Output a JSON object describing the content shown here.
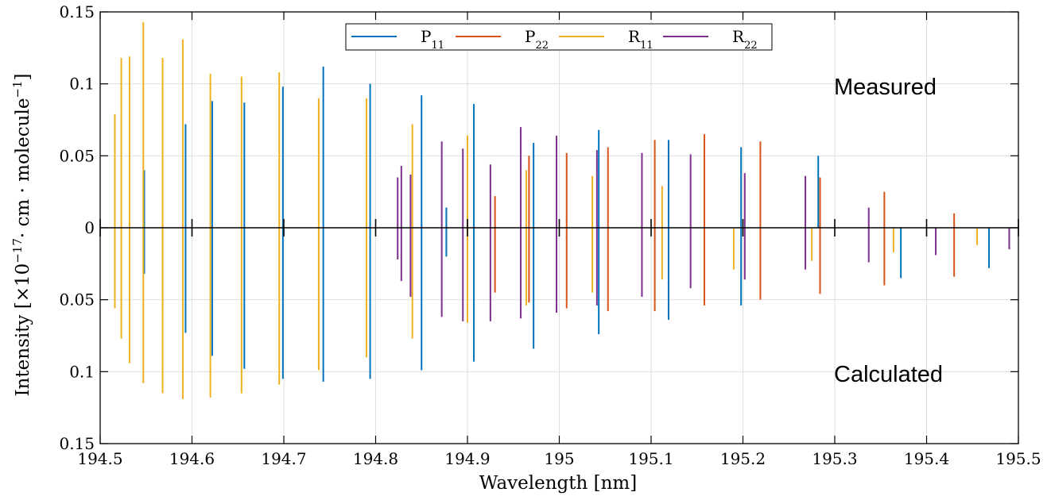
{
  "chart_data": {
    "type": "bar",
    "subtype": "stick-spectrum-mirrored",
    "xlabel": "Wavelength [nm]",
    "ylabel": "Intensity [×10⁻¹⁷· cm · molecule⁻¹]",
    "ylabel_parts": {
      "lead": "Intensity [×10",
      "exp1": "−17",
      "mid": "· cm · molecule",
      "exp2": "−1",
      "tail": "]"
    },
    "xlim": [
      194.5,
      195.5
    ],
    "ylim": [
      -0.15,
      0.15
    ],
    "x_ticks": [
      194.5,
      194.6,
      194.7,
      194.8,
      194.9,
      195.0,
      195.1,
      195.2,
      195.3,
      195.4,
      195.5
    ],
    "x_tick_labels": [
      "194.5",
      "194.6",
      "194.7",
      "194.8",
      "194.9",
      "195",
      "195.1",
      "195.2",
      "195.3",
      "195.4",
      "195.5"
    ],
    "y_ticks": [
      0.15,
      0.1,
      0.05,
      0,
      -0.05,
      -0.1,
      -0.15
    ],
    "y_tick_labels": [
      "0.15",
      "0.1",
      "0.05",
      "0",
      "0.05",
      "0.1",
      "0.15"
    ],
    "grid": true,
    "legend_position": "top-center",
    "annotations": {
      "upper": "Measured",
      "lower": "Calculated"
    },
    "series": [
      {
        "name": "P11",
        "name_main": "P",
        "name_sub": "11",
        "color": "#0072BD",
        "measured": [
          [
            194.548,
            0.04
          ],
          [
            194.593,
            0.072
          ],
          [
            194.622,
            0.088
          ],
          [
            194.657,
            0.087
          ],
          [
            194.699,
            0.098
          ],
          [
            194.743,
            0.112
          ],
          [
            194.794,
            0.1
          ],
          [
            194.85,
            0.092
          ],
          [
            194.877,
            0.014
          ],
          [
            194.907,
            0.086
          ],
          [
            194.972,
            0.059
          ],
          [
            195.043,
            0.068
          ],
          [
            195.119,
            0.061
          ],
          [
            195.198,
            0.056
          ],
          [
            195.282,
            0.05
          ]
        ],
        "calculated": [
          [
            194.548,
            -0.032
          ],
          [
            194.568,
            -0.054
          ],
          [
            194.593,
            -0.073
          ],
          [
            194.622,
            -0.089
          ],
          [
            194.657,
            -0.098
          ],
          [
            194.699,
            -0.105
          ],
          [
            194.743,
            -0.107
          ],
          [
            194.794,
            -0.105
          ],
          [
            194.85,
            -0.099
          ],
          [
            194.877,
            -0.02
          ],
          [
            194.907,
            -0.093
          ],
          [
            194.972,
            -0.084
          ],
          [
            195.043,
            -0.074
          ],
          [
            195.119,
            -0.064
          ],
          [
            195.198,
            -0.054
          ],
          [
            195.372,
            -0.035
          ],
          [
            195.468,
            -0.028
          ]
        ]
      },
      {
        "name": "P22",
        "name_main": "P",
        "name_sub": "22",
        "color": "#D95319",
        "measured": [
          [
            194.93,
            0.022
          ],
          [
            194.967,
            0.05
          ],
          [
            195.008,
            0.052
          ],
          [
            195.053,
            0.056
          ],
          [
            195.104,
            0.061
          ],
          [
            195.158,
            0.065
          ],
          [
            195.219,
            0.06
          ],
          [
            195.284,
            0.035
          ],
          [
            195.354,
            0.025
          ],
          [
            195.43,
            0.01
          ]
        ],
        "calculated": [
          [
            194.93,
            -0.045
          ],
          [
            194.967,
            -0.052
          ],
          [
            195.008,
            -0.056
          ],
          [
            195.053,
            -0.058
          ],
          [
            195.104,
            -0.058
          ],
          [
            195.158,
            -0.054
          ],
          [
            195.219,
            -0.05
          ],
          [
            195.284,
            -0.046
          ],
          [
            195.354,
            -0.04
          ],
          [
            195.43,
            -0.034
          ]
        ]
      },
      {
        "name": "R11",
        "name_main": "R",
        "name_sub": "11",
        "color": "#EDB120",
        "measured": [
          [
            194.516,
            0.079
          ],
          [
            194.523,
            0.118
          ],
          [
            194.532,
            0.119
          ],
          [
            194.547,
            0.143
          ],
          [
            194.568,
            0.118
          ],
          [
            194.59,
            0.131
          ],
          [
            194.62,
            0.107
          ],
          [
            194.654,
            0.105
          ],
          [
            194.695,
            0.108
          ],
          [
            194.738,
            0.09
          ],
          [
            194.79,
            0.09
          ],
          [
            194.84,
            0.072
          ],
          [
            194.9,
            0.064
          ],
          [
            194.964,
            0.04
          ],
          [
            195.036,
            0.036
          ],
          [
            195.112,
            0.029
          ],
          [
            195.19,
            0.0
          ],
          [
            195.275,
            0.0
          ],
          [
            195.364,
            0.0
          ],
          [
            195.455,
            0.0
          ]
        ],
        "calculated": [
          [
            194.516,
            -0.056
          ],
          [
            194.523,
            -0.077
          ],
          [
            194.532,
            -0.094
          ],
          [
            194.547,
            -0.108
          ],
          [
            194.568,
            -0.115
          ],
          [
            194.59,
            -0.119
          ],
          [
            194.62,
            -0.118
          ],
          [
            194.654,
            -0.115
          ],
          [
            194.695,
            -0.109
          ],
          [
            194.738,
            -0.099
          ],
          [
            194.79,
            -0.09
          ],
          [
            194.84,
            -0.077
          ],
          [
            194.9,
            -0.066
          ],
          [
            194.964,
            -0.054
          ],
          [
            195.036,
            -0.045
          ],
          [
            195.112,
            -0.036
          ],
          [
            195.19,
            -0.029
          ],
          [
            195.275,
            -0.023
          ],
          [
            195.364,
            -0.017
          ],
          [
            195.455,
            -0.012
          ]
        ]
      },
      {
        "name": "R22",
        "name_main": "R",
        "name_sub": "22",
        "color": "#7E2F8E",
        "measured": [
          [
            194.824,
            0.035
          ],
          [
            194.828,
            0.043
          ],
          [
            194.838,
            0.037
          ],
          [
            194.872,
            0.06
          ],
          [
            194.895,
            0.055
          ],
          [
            194.925,
            0.044
          ],
          [
            194.958,
            0.07
          ],
          [
            194.997,
            0.064
          ],
          [
            195.041,
            0.054
          ],
          [
            195.09,
            0.052
          ],
          [
            195.143,
            0.051
          ],
          [
            195.202,
            0.038
          ],
          [
            195.268,
            0.036
          ],
          [
            195.337,
            0.014
          ]
        ],
        "calculated": [
          [
            194.824,
            -0.022
          ],
          [
            194.828,
            -0.037
          ],
          [
            194.838,
            -0.048
          ],
          [
            194.872,
            -0.062
          ],
          [
            194.895,
            -0.065
          ],
          [
            194.925,
            -0.065
          ],
          [
            194.958,
            -0.063
          ],
          [
            194.997,
            -0.059
          ],
          [
            195.041,
            -0.054
          ],
          [
            195.09,
            -0.048
          ],
          [
            195.143,
            -0.042
          ],
          [
            195.202,
            -0.036
          ],
          [
            195.268,
            -0.029
          ],
          [
            195.337,
            -0.024
          ],
          [
            195.41,
            -0.019
          ],
          [
            195.49,
            -0.015
          ]
        ]
      }
    ]
  }
}
